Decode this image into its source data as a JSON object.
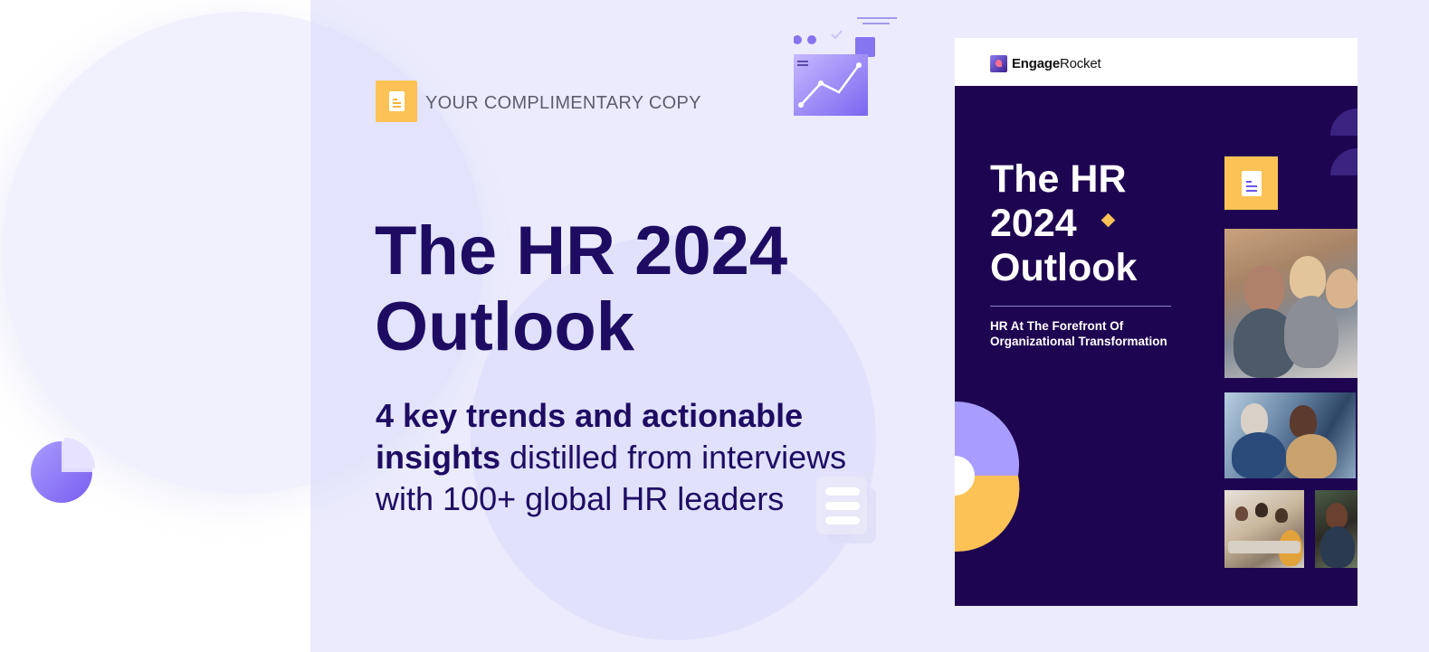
{
  "promo": {
    "complimentary_label": "YOUR COMPLIMENTARY COPY",
    "title_line1": "The HR 2024",
    "title_line2": "Outlook",
    "subtitle_bold": "4 key trends and actionable insights",
    "subtitle_rest": " distilled from interviews with 100+ global HR leaders"
  },
  "cover": {
    "brand_bold": "Engage",
    "brand_rest": "Rocket",
    "title_line1": "The HR",
    "title_line2": "2024",
    "title_line3": "Outlook",
    "subtitle_line1": "HR At The Forefront Of",
    "subtitle_line2": "Organizational Transformation"
  },
  "icons": {
    "badge": "document-icon",
    "cover_badge": "document-icon",
    "chart": "line-chart-icon",
    "list": "list-icon",
    "pie": "pie-chart-icon"
  },
  "colors": {
    "accent_yellow": "#fcc255",
    "navy_text": "#1e0c63",
    "cover_bg": "#1e0551",
    "purple": "#8a7cf0",
    "panel_bg": "#ebebfd"
  }
}
